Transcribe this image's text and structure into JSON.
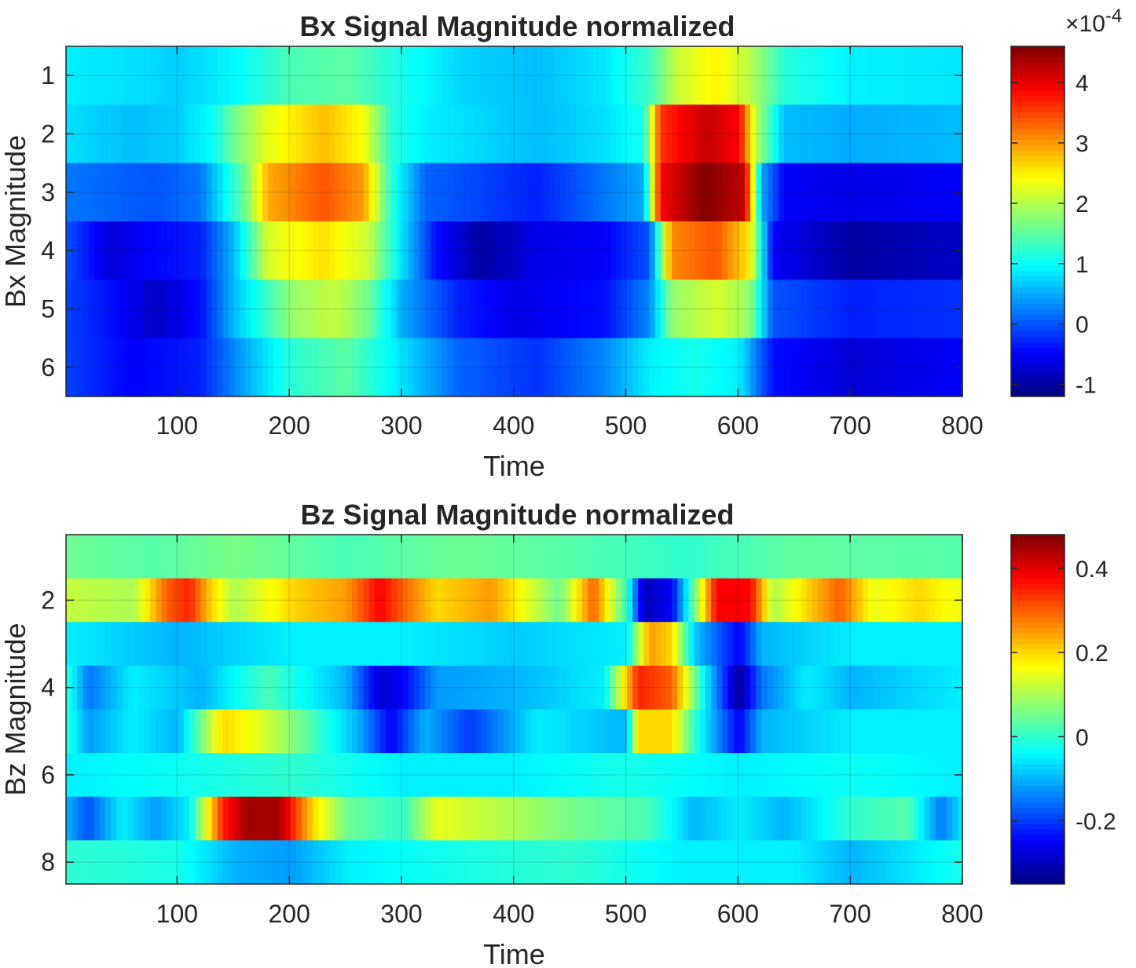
{
  "chart_data": [
    {
      "type": "heatmap",
      "title": "Bx Signal Magnitude normalized",
      "xlabel": "Time",
      "ylabel": "Bx Magnitude",
      "xlim": [
        1,
        800
      ],
      "ylim": [
        0.5,
        6.5
      ],
      "x_ticks": [
        100,
        200,
        300,
        400,
        500,
        600,
        700,
        800
      ],
      "y_ticks": [
        1,
        2,
        3,
        4,
        5,
        6
      ],
      "grid": true,
      "colormap": "jet",
      "colorbar": {
        "range": [
          -1.2,
          4.6
        ],
        "ticks": [
          -1,
          0,
          1,
          2,
          3,
          4
        ],
        "exponent_label": "×10",
        "exponent_value": "-4"
      },
      "rows": [
        {
          "row": 1,
          "profile": [
            [
              0,
              0.9
            ],
            [
              60,
              0.8
            ],
            [
              100,
              0.7
            ],
            [
              150,
              0.95
            ],
            [
              200,
              1.4
            ],
            [
              250,
              1.5
            ],
            [
              300,
              1.1
            ],
            [
              350,
              0.75
            ],
            [
              420,
              0.6
            ],
            [
              480,
              0.85
            ],
            [
              520,
              1.3
            ],
            [
              545,
              2.1
            ],
            [
              580,
              2.5
            ],
            [
              610,
              2.0
            ],
            [
              640,
              1.2
            ],
            [
              700,
              0.9
            ],
            [
              800,
              0.85
            ]
          ]
        },
        {
          "row": 2,
          "profile": [
            [
              0,
              0.8
            ],
            [
              60,
              0.6
            ],
            [
              100,
              0.7
            ],
            [
              130,
              1.0
            ],
            [
              150,
              1.6
            ],
            [
              180,
              2.3
            ],
            [
              230,
              2.8
            ],
            [
              265,
              2.4
            ],
            [
              290,
              1.2
            ],
            [
              320,
              0.9
            ],
            [
              420,
              0.6
            ],
            [
              480,
              0.8
            ],
            [
              515,
              1.1
            ],
            [
              530,
              3.6
            ],
            [
              570,
              4.2
            ],
            [
              600,
              3.9
            ],
            [
              615,
              2.0
            ],
            [
              640,
              0.6
            ],
            [
              700,
              0.5
            ],
            [
              800,
              0.6
            ]
          ]
        },
        {
          "row": 3,
          "profile": [
            [
              0,
              0.2
            ],
            [
              80,
              0.0
            ],
            [
              120,
              0.2
            ],
            [
              160,
              1.6
            ],
            [
              180,
              2.9
            ],
            [
              230,
              3.4
            ],
            [
              265,
              3.0
            ],
            [
              290,
              1.2
            ],
            [
              320,
              0.1
            ],
            [
              420,
              -0.3
            ],
            [
              480,
              0.2
            ],
            [
              515,
              0.5
            ],
            [
              530,
              3.9
            ],
            [
              570,
              4.6
            ],
            [
              605,
              4.2
            ],
            [
              620,
              0.5
            ],
            [
              640,
              -0.5
            ],
            [
              700,
              -0.6
            ],
            [
              800,
              -0.5
            ]
          ]
        },
        {
          "row": 4,
          "profile": [
            [
              0,
              0.0
            ],
            [
              40,
              -0.7
            ],
            [
              70,
              -0.5
            ],
            [
              120,
              -0.3
            ],
            [
              150,
              0.6
            ],
            [
              180,
              2.2
            ],
            [
              230,
              2.6
            ],
            [
              270,
              2.1
            ],
            [
              300,
              0.8
            ],
            [
              330,
              -0.4
            ],
            [
              370,
              -1.0
            ],
            [
              420,
              -0.6
            ],
            [
              480,
              -0.5
            ],
            [
              520,
              0.0
            ],
            [
              540,
              3.1
            ],
            [
              580,
              3.4
            ],
            [
              610,
              2.5
            ],
            [
              630,
              -0.5
            ],
            [
              700,
              -1.0
            ],
            [
              800,
              -0.8
            ]
          ]
        },
        {
          "row": 5,
          "profile": [
            [
              0,
              -0.1
            ],
            [
              40,
              -0.4
            ],
            [
              80,
              -0.8
            ],
            [
              120,
              -0.4
            ],
            [
              150,
              0.6
            ],
            [
              200,
              1.8
            ],
            [
              240,
              2.1
            ],
            [
              270,
              1.6
            ],
            [
              300,
              0.5
            ],
            [
              350,
              -0.3
            ],
            [
              400,
              -0.6
            ],
            [
              480,
              -0.4
            ],
            [
              520,
              0.3
            ],
            [
              540,
              1.8
            ],
            [
              580,
              2.2
            ],
            [
              610,
              1.8
            ],
            [
              630,
              0.0
            ],
            [
              700,
              -0.3
            ],
            [
              800,
              -0.2
            ]
          ]
        },
        {
          "row": 6,
          "profile": [
            [
              0,
              -0.1
            ],
            [
              60,
              -0.5
            ],
            [
              120,
              -0.3
            ],
            [
              160,
              0.5
            ],
            [
              200,
              1.2
            ],
            [
              250,
              1.5
            ],
            [
              300,
              0.8
            ],
            [
              350,
              0.1
            ],
            [
              420,
              -0.2
            ],
            [
              480,
              0.3
            ],
            [
              520,
              0.9
            ],
            [
              560,
              1.1
            ],
            [
              600,
              0.9
            ],
            [
              630,
              -0.4
            ],
            [
              700,
              -0.7
            ],
            [
              800,
              -0.5
            ]
          ]
        }
      ]
    },
    {
      "type": "heatmap",
      "title": "Bz Signal Magnitude normalized",
      "xlabel": "Time",
      "ylabel": "Bz Magnitude",
      "xlim": [
        1,
        800
      ],
      "ylim": [
        0.5,
        8.5
      ],
      "x_ticks": [
        100,
        200,
        300,
        400,
        500,
        600,
        700,
        800
      ],
      "y_ticks": [
        2,
        4,
        6,
        8
      ],
      "grid": true,
      "colormap": "jet",
      "colorbar": {
        "range": [
          -0.35,
          0.48
        ],
        "ticks": [
          -0.2,
          0,
          0.2,
          0.4
        ]
      },
      "rows": [
        {
          "row": 1,
          "profile": [
            [
              0,
              0.05
            ],
            [
              80,
              0.03
            ],
            [
              150,
              0.06
            ],
            [
              250,
              0.02
            ],
            [
              350,
              0.05
            ],
            [
              450,
              0.03
            ],
            [
              550,
              0.0
            ],
            [
              650,
              0.04
            ],
            [
              800,
              0.03
            ]
          ]
        },
        {
          "row": 2,
          "profile": [
            [
              0,
              0.12
            ],
            [
              60,
              0.1
            ],
            [
              90,
              0.3
            ],
            [
              110,
              0.35
            ],
            [
              130,
              0.2
            ],
            [
              150,
              0.1
            ],
            [
              200,
              0.2
            ],
            [
              250,
              0.25
            ],
            [
              280,
              0.38
            ],
            [
              300,
              0.3
            ],
            [
              330,
              0.2
            ],
            [
              380,
              0.25
            ],
            [
              410,
              0.15
            ],
            [
              440,
              0.05
            ],
            [
              470,
              0.3
            ],
            [
              500,
              0.0
            ],
            [
              515,
              -0.3
            ],
            [
              540,
              -0.25
            ],
            [
              560,
              0.05
            ],
            [
              580,
              0.38
            ],
            [
              610,
              0.38
            ],
            [
              630,
              0.1
            ],
            [
              660,
              0.2
            ],
            [
              690,
              0.3
            ],
            [
              720,
              0.15
            ],
            [
              760,
              0.2
            ],
            [
              800,
              0.15
            ]
          ]
        },
        {
          "row": 3,
          "profile": [
            [
              0,
              -0.05
            ],
            [
              100,
              -0.1
            ],
            [
              200,
              -0.05
            ],
            [
              300,
              -0.05
            ],
            [
              400,
              -0.08
            ],
            [
              500,
              -0.05
            ],
            [
              520,
              0.25
            ],
            [
              540,
              0.2
            ],
            [
              560,
              -0.08
            ],
            [
              600,
              -0.25
            ],
            [
              620,
              -0.1
            ],
            [
              700,
              -0.05
            ],
            [
              800,
              -0.05
            ]
          ]
        },
        {
          "row": 4,
          "profile": [
            [
              0,
              0.0
            ],
            [
              20,
              -0.15
            ],
            [
              60,
              -0.05
            ],
            [
              120,
              -0.1
            ],
            [
              180,
              0.02
            ],
            [
              250,
              -0.1
            ],
            [
              280,
              -0.28
            ],
            [
              300,
              -0.25
            ],
            [
              330,
              -0.12
            ],
            [
              400,
              -0.1
            ],
            [
              480,
              -0.05
            ],
            [
              510,
              0.35
            ],
            [
              540,
              0.3
            ],
            [
              570,
              -0.05
            ],
            [
              600,
              -0.33
            ],
            [
              620,
              -0.15
            ],
            [
              660,
              -0.05
            ],
            [
              700,
              -0.1
            ],
            [
              800,
              -0.05
            ]
          ]
        },
        {
          "row": 5,
          "profile": [
            [
              0,
              0.0
            ],
            [
              20,
              -0.12
            ],
            [
              60,
              -0.05
            ],
            [
              100,
              -0.1
            ],
            [
              140,
              0.2
            ],
            [
              170,
              0.15
            ],
            [
              210,
              0.05
            ],
            [
              260,
              -0.1
            ],
            [
              290,
              -0.25
            ],
            [
              320,
              -0.1
            ],
            [
              360,
              -0.2
            ],
            [
              420,
              -0.05
            ],
            [
              500,
              -0.1
            ],
            [
              510,
              0.2
            ],
            [
              540,
              0.2
            ],
            [
              560,
              0.0
            ],
            [
              600,
              -0.25
            ],
            [
              620,
              -0.1
            ],
            [
              700,
              -0.05
            ],
            [
              800,
              -0.05
            ]
          ]
        },
        {
          "row": 6,
          "profile": [
            [
              0,
              -0.05
            ],
            [
              100,
              -0.03
            ],
            [
              200,
              0.0
            ],
            [
              300,
              -0.05
            ],
            [
              400,
              -0.05
            ],
            [
              500,
              -0.02
            ],
            [
              600,
              -0.05
            ],
            [
              700,
              -0.03
            ],
            [
              800,
              -0.05
            ]
          ]
        },
        {
          "row": 7,
          "profile": [
            [
              0,
              -0.1
            ],
            [
              20,
              -0.18
            ],
            [
              50,
              -0.05
            ],
            [
              80,
              -0.12
            ],
            [
              110,
              -0.05
            ],
            [
              140,
              0.35
            ],
            [
              160,
              0.45
            ],
            [
              190,
              0.45
            ],
            [
              220,
              0.2
            ],
            [
              250,
              0.05
            ],
            [
              300,
              0.0
            ],
            [
              330,
              0.15
            ],
            [
              400,
              0.1
            ],
            [
              460,
              0.05
            ],
            [
              520,
              0.02
            ],
            [
              560,
              -0.1
            ],
            [
              600,
              -0.05
            ],
            [
              640,
              -0.1
            ],
            [
              700,
              0.0
            ],
            [
              750,
              0.03
            ],
            [
              780,
              -0.15
            ],
            [
              800,
              -0.05
            ]
          ]
        },
        {
          "row": 8,
          "profile": [
            [
              0,
              0.0
            ],
            [
              100,
              -0.02
            ],
            [
              150,
              -0.1
            ],
            [
              200,
              -0.12
            ],
            [
              250,
              -0.05
            ],
            [
              350,
              -0.02
            ],
            [
              450,
              0.0
            ],
            [
              550,
              -0.05
            ],
            [
              650,
              -0.05
            ],
            [
              700,
              -0.1
            ],
            [
              800,
              -0.02
            ]
          ]
        }
      ]
    }
  ]
}
